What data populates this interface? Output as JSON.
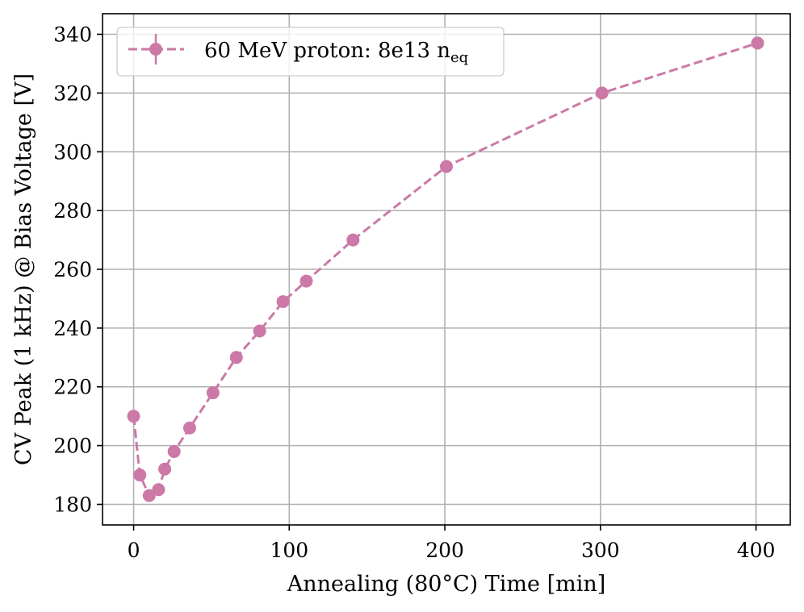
{
  "chart_data": {
    "type": "line",
    "title": "",
    "xlabel": "Annealing (80°C) Time [min]",
    "ylabel": "CV Peak (1 kHz) @ Bias Voltage [V]",
    "xlim": [
      -20,
      422
    ],
    "ylim": [
      173,
      347
    ],
    "xticks": [
      0,
      100,
      200,
      300,
      400
    ],
    "yticks": [
      180,
      200,
      220,
      240,
      260,
      280,
      300,
      320,
      340
    ],
    "grid": true,
    "legend_position": "top-left",
    "series": [
      {
        "name": "60 MeV proton: 8e13 n",
        "name_subscript": "eq",
        "color": "#cc79a7",
        "linestyle": "dashed",
        "marker": "circle",
        "x": [
          0,
          4,
          10,
          16,
          20,
          26,
          36,
          51,
          66,
          81,
          96,
          111,
          141,
          201,
          301,
          401
        ],
        "y": [
          210,
          190,
          183,
          185,
          192,
          198,
          206,
          218,
          230,
          239,
          249,
          256,
          270,
          295,
          320,
          337
        ]
      }
    ]
  }
}
